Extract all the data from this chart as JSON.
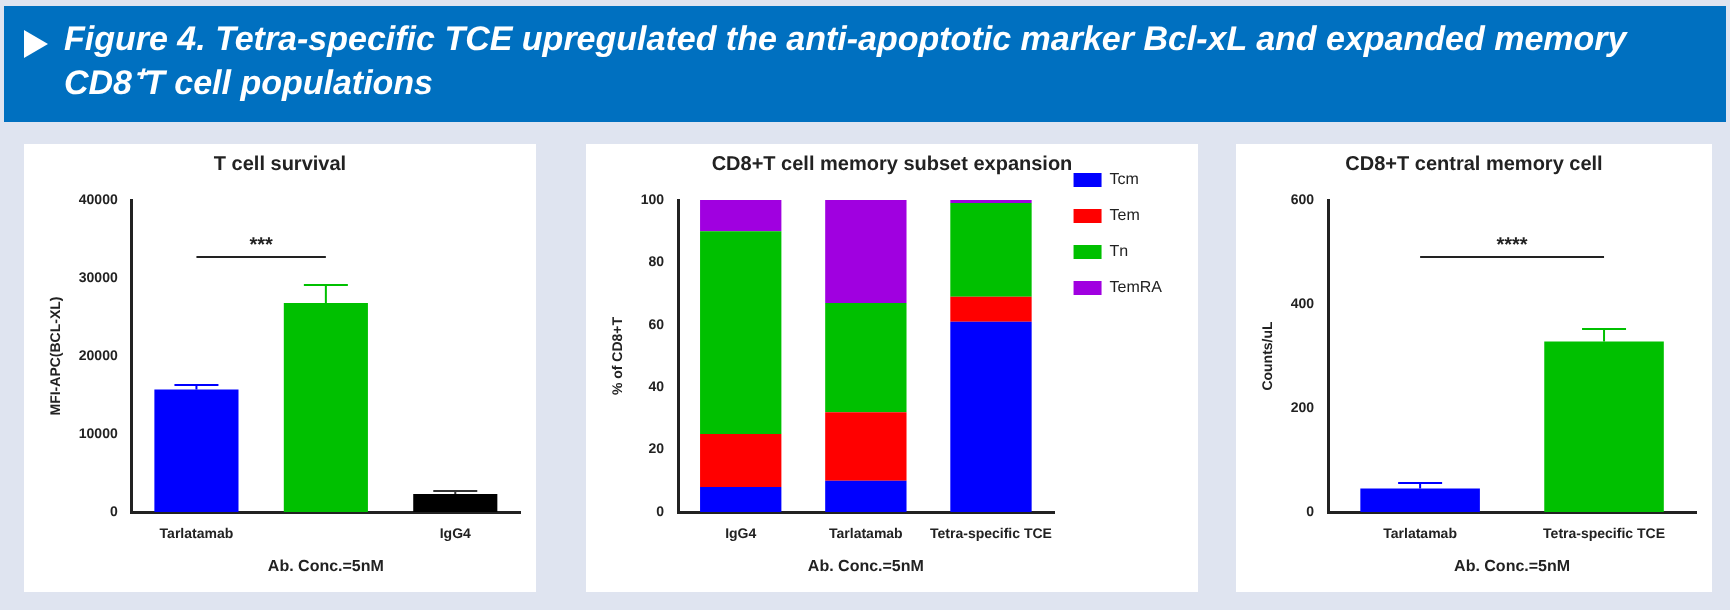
{
  "chart_data": [
    {
      "type": "other",
      "title": "Figure 4. Tetra-specific TCE upregulated the anti-apoptotic marker Bcl-xL and expanded memory CD8⁺T cell populations"
    },
    {
      "type": "bar",
      "title": "T cell survival",
      "xlabel": "Ab. Conc.=5nM",
      "ylabel": "MFI-APC(BCL-XL)",
      "categories": [
        "Tarlatamab",
        null,
        "IgG4"
      ],
      "values": [
        15700,
        26800,
        2300
      ],
      "colors": [
        "#0000ff",
        "#00c000",
        "#000000"
      ],
      "errors": [
        [
          15700,
          16300
        ],
        [
          26800,
          29200
        ],
        [
          2300,
          2700
        ]
      ],
      "ylim": [
        0,
        40000
      ],
      "yticks": [
        0,
        10000,
        20000,
        30000,
        40000
      ],
      "grid": false,
      "legend": false,
      "annotations": [
        "***"
      ]
    },
    {
      "type": "bar",
      "title": "CD8+T cell memory subset expansion",
      "xlabel": "Ab. Conc.=5nM",
      "ylabel": "% of CD8+T",
      "categories": [
        "IgG4",
        "Tarlatamab",
        "Tetra-specific TCE"
      ],
      "stacked": true,
      "series": [
        {
          "name": "Tcm",
          "color": "#0000ff",
          "values": [
            8,
            10,
            61
          ]
        },
        {
          "name": "Tem",
          "color": "#ff0000",
          "values": [
            17,
            22,
            8
          ]
        },
        {
          "name": "Tn",
          "color": "#00c000",
          "values": [
            65,
            35,
            30
          ]
        },
        {
          "name": "TemRA",
          "color": "#a000e0",
          "values": [
            10,
            33,
            1
          ]
        }
      ],
      "ylim": [
        0,
        100
      ],
      "yticks": [
        0,
        20,
        40,
        60,
        80,
        100
      ],
      "grid": false,
      "legend": "right"
    },
    {
      "type": "bar",
      "title": "CD8+T central memory cell",
      "xlabel": "Ab. Conc.=5nM",
      "ylabel": "Counts/uL",
      "categories": [
        "Tarlatamab",
        "Tetra-specific TCE"
      ],
      "values": [
        45,
        328
      ],
      "colors": [
        "#0000ff",
        "#00c000"
      ],
      "errors": [
        [
          45,
          57
        ],
        [
          328,
          352
        ]
      ],
      "ylim": [
        0,
        600
      ],
      "yticks": [
        0,
        200,
        400,
        600
      ],
      "grid": false,
      "legend": false,
      "annotations": [
        "****"
      ]
    }
  ]
}
